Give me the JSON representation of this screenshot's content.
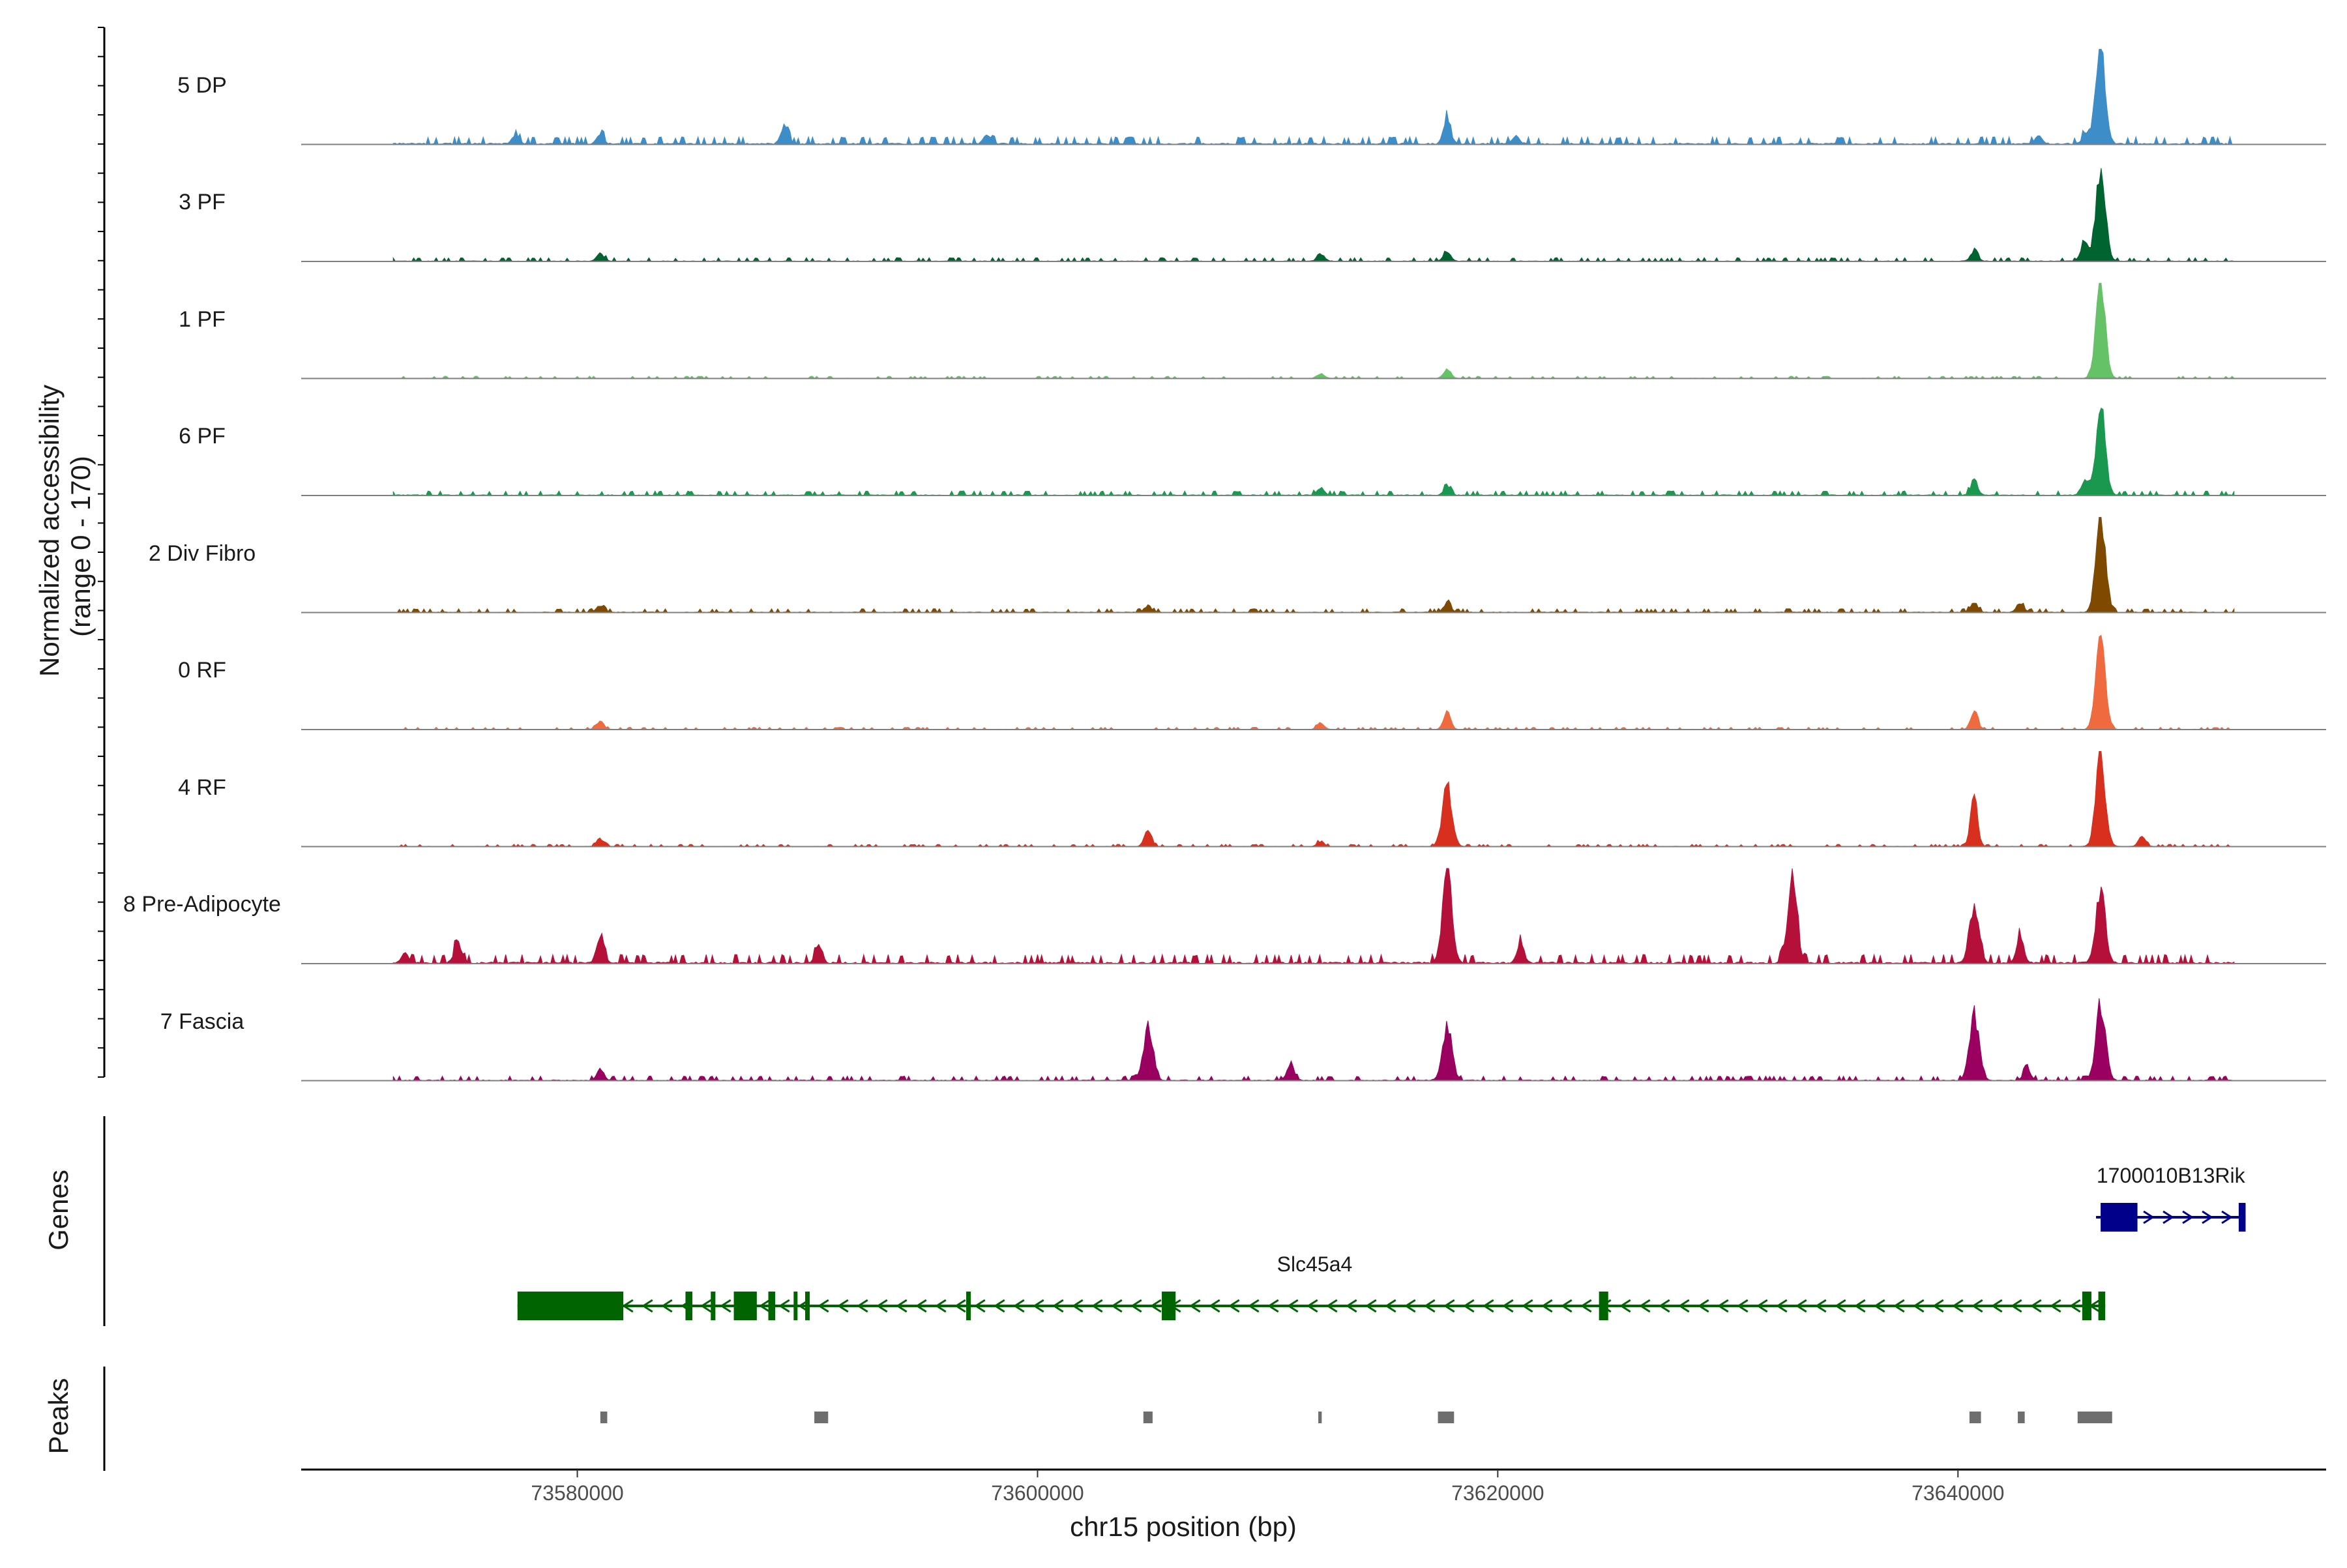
{
  "chart_data": {
    "type": "area",
    "region": {
      "chrom": "chr15",
      "start": 73568000,
      "end": 73656000
    },
    "accessibility_panel": {
      "ylabel_line1": "Normalized accessibility",
      "ylabel_line2": "(range 0 - 170)",
      "ylim": [
        0,
        170
      ],
      "tracks": [
        {
          "name": "5 DP",
          "color": "#3C8DC8",
          "noise": 0.05,
          "peaks": [
            [
              73577300,
              0.08
            ],
            [
              73581000,
              0.1
            ],
            [
              73589000,
              0.18
            ],
            [
              73597800,
              0.1
            ],
            [
              73617800,
              0.28
            ],
            [
              73620800,
              0.08
            ],
            [
              73643500,
              0.08
            ],
            [
              73645600,
              0.12
            ],
            [
              73646200,
              1.0
            ]
          ]
        },
        {
          "name": "3 PF",
          "color": "#006430",
          "noise": 0.025,
          "peaks": [
            [
              73581000,
              0.08
            ],
            [
              73612300,
              0.08
            ],
            [
              73617800,
              0.1
            ],
            [
              73640700,
              0.1
            ],
            [
              73645500,
              0.2
            ],
            [
              73646200,
              1.0
            ]
          ]
        },
        {
          "name": "1 PF",
          "color": "#66C266",
          "noise": 0.015,
          "peaks": [
            [
              73612300,
              0.05
            ],
            [
              73617800,
              0.1
            ],
            [
              73646200,
              1.0
            ]
          ]
        },
        {
          "name": "6 PF",
          "color": "#1A9850",
          "noise": 0.03,
          "peaks": [
            [
              73612300,
              0.08
            ],
            [
              73617800,
              0.08
            ],
            [
              73640700,
              0.15
            ],
            [
              73645500,
              0.15
            ],
            [
              73646200,
              0.95
            ]
          ]
        },
        {
          "name": "2 Div Fibro",
          "color": "#7F4A00",
          "noise": 0.025,
          "peaks": [
            [
              73581000,
              0.07
            ],
            [
              73604800,
              0.07
            ],
            [
              73617800,
              0.1
            ],
            [
              73640700,
              0.1
            ],
            [
              73642700,
              0.1
            ],
            [
              73646200,
              1.0
            ]
          ]
        },
        {
          "name": "0 RF",
          "color": "#F06A40",
          "noise": 0.015,
          "peaks": [
            [
              73581000,
              0.08
            ],
            [
              73612300,
              0.07
            ],
            [
              73617800,
              0.18
            ],
            [
              73640700,
              0.2
            ],
            [
              73646200,
              1.0
            ]
          ]
        },
        {
          "name": "4 RF",
          "color": "#D7301F",
          "noise": 0.015,
          "peaks": [
            [
              73581000,
              0.08
            ],
            [
              73604800,
              0.18
            ],
            [
              73612300,
              0.05
            ],
            [
              73617800,
              0.65
            ],
            [
              73640700,
              0.5
            ],
            [
              73646200,
              0.95
            ],
            [
              73648000,
              0.1
            ]
          ]
        },
        {
          "name": "8 Pre-Adipocyte",
          "color": "#B5103A",
          "noise": 0.06,
          "peaks": [
            [
              73572500,
              0.1
            ],
            [
              73574800,
              0.22
            ],
            [
              73581000,
              0.3
            ],
            [
              73590500,
              0.18
            ],
            [
              73617800,
              0.95
            ],
            [
              73621000,
              0.2
            ],
            [
              73632800,
              0.85
            ],
            [
              73640700,
              0.6
            ],
            [
              73642700,
              0.3
            ],
            [
              73646200,
              0.75
            ]
          ]
        },
        {
          "name": "7 Fascia",
          "color": "#990060",
          "noise": 0.03,
          "peaks": [
            [
              73581000,
              0.12
            ],
            [
              73604800,
              0.55
            ],
            [
              73611000,
              0.18
            ],
            [
              73617800,
              0.55
            ],
            [
              73640700,
              0.7
            ],
            [
              73643000,
              0.12
            ],
            [
              73646200,
              0.8
            ]
          ]
        }
      ]
    },
    "genes_panel": {
      "title": "Genes",
      "genes": [
        {
          "name": "Slc45a4",
          "strand": "-",
          "color": "#006400",
          "start": 73577400,
          "end": 73646400,
          "exons": [
            [
              73577400,
              73582000
            ],
            [
              73584700,
              73585000
            ],
            [
              73585800,
              73586000
            ],
            [
              73586800,
              73587800
            ],
            [
              73588300,
              73588600
            ],
            [
              73589400,
              73589500
            ],
            [
              73589900,
              73590100
            ],
            [
              73596900,
              73597100
            ],
            [
              73605400,
              73606000
            ],
            [
              73624400,
              73624800
            ],
            [
              73645400,
              73645800
            ],
            [
              73646100,
              73646400
            ]
          ]
        },
        {
          "name": "1700010B13Rik",
          "strand": "+",
          "color": "#00008B",
          "start": 73646000,
          "end": 73652500,
          "exons": [
            [
              73646200,
              73647800
            ],
            [
              73652200,
              73652500
            ]
          ]
        }
      ]
    },
    "peaks_panel": {
      "title": "Peaks",
      "color": "#6e6e6e",
      "peaks": [
        [
          73581000,
          73581300
        ],
        [
          73590300,
          73590900
        ],
        [
          73604600,
          73605000
        ],
        [
          73612200,
          73612350
        ],
        [
          73617400,
          73618100
        ],
        [
          73640500,
          73641000
        ],
        [
          73642600,
          73642900
        ],
        [
          73645200,
          73646700
        ]
      ]
    },
    "x_axis": {
      "label": "chr15 position (bp)",
      "ticks": [
        73580000,
        73600000,
        73620000,
        73640000
      ],
      "tick_labels": [
        "73580000",
        "73600000",
        "73620000",
        "73640000"
      ]
    }
  }
}
